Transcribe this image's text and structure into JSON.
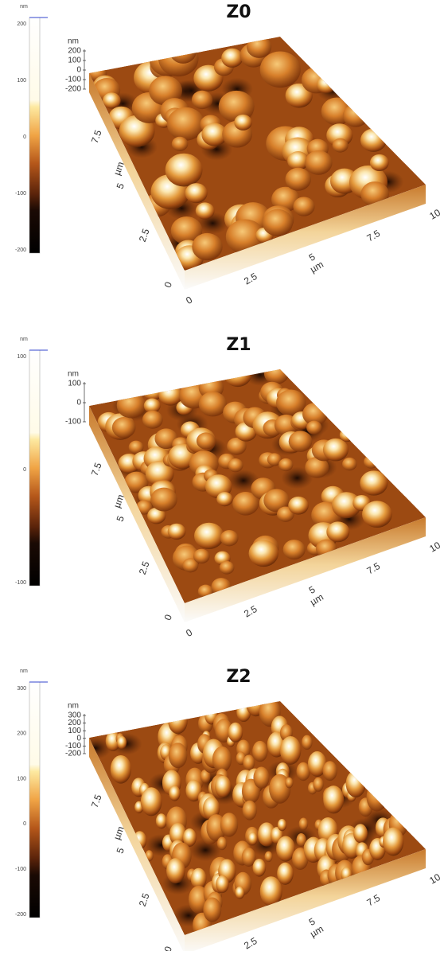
{
  "panels": [
    {
      "title": "Z0",
      "colorbar": {
        "unit": "nm",
        "ticks": [
          200,
          100,
          0,
          -100,
          -200
        ]
      },
      "z_axis": {
        "unit": "nm",
        "ticks": [
          200,
          100,
          0,
          -100,
          -200
        ]
      },
      "x_axis": {
        "unit": "µm",
        "ticks": [
          0,
          2.5,
          5,
          7.5,
          10
        ]
      },
      "y_axis": {
        "unit": "µm",
        "ticks": [
          0,
          2.5,
          5,
          7.5
        ]
      }
    },
    {
      "title": "Z1",
      "colorbar": {
        "unit": "nm",
        "ticks": [
          100,
          0,
          -100
        ]
      },
      "z_axis": {
        "unit": "nm",
        "ticks": [
          100,
          0,
          -100
        ]
      },
      "x_axis": {
        "unit": "µm",
        "ticks": [
          0,
          2.5,
          5,
          7.5,
          10
        ]
      },
      "y_axis": {
        "unit": "µm",
        "ticks": [
          0,
          2.5,
          5,
          7.5
        ]
      }
    },
    {
      "title": "Z2",
      "colorbar": {
        "unit": "nm",
        "ticks": [
          300,
          200,
          100,
          0,
          -100,
          -200
        ]
      },
      "z_axis": {
        "unit": "nm",
        "ticks": [
          300,
          200,
          100,
          0,
          -100,
          -200
        ]
      },
      "x_axis": {
        "unit": "µm",
        "ticks": [
          0,
          2.5,
          5,
          7.5,
          10
        ]
      },
      "y_axis": {
        "unit": "µm",
        "ticks": [
          0,
          2.5,
          5,
          7.5
        ]
      }
    }
  ]
}
